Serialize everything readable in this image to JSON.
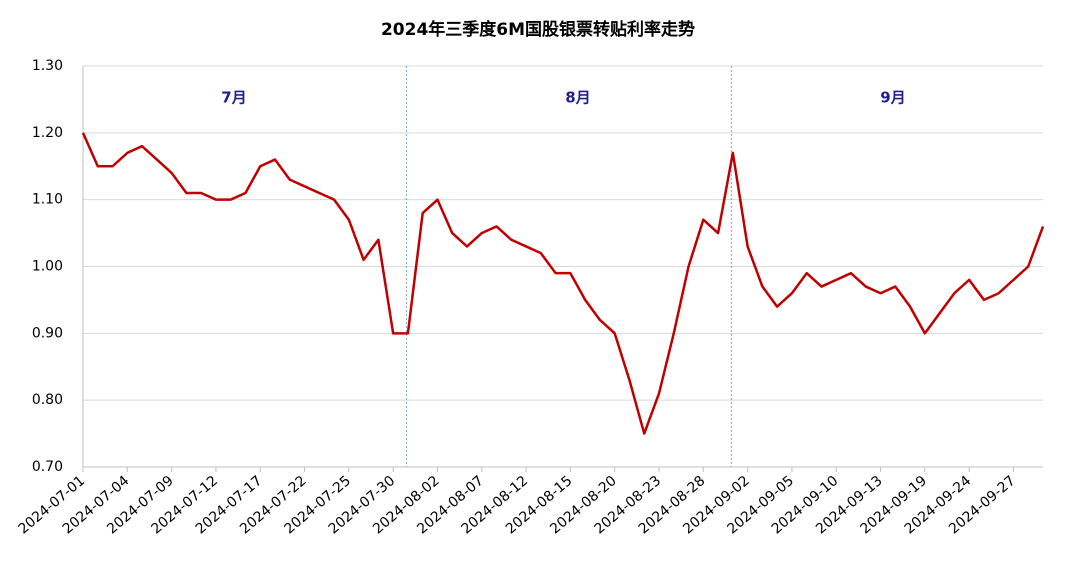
{
  "chart_data": {
    "type": "line",
    "title": "2024年三季度6M国股银票转贴利率走势",
    "categories": [
      "2024-07-01",
      null,
      null,
      "2024-07-04",
      null,
      null,
      "2024-07-09",
      null,
      null,
      "2024-07-12",
      null,
      null,
      "2024-07-17",
      null,
      null,
      "2024-07-22",
      null,
      null,
      "2024-07-25",
      null,
      null,
      "2024-07-30",
      null,
      null,
      "2024-08-02",
      null,
      null,
      "2024-08-07",
      null,
      null,
      "2024-08-12",
      null,
      null,
      "2024-08-15",
      null,
      null,
      "2024-08-20",
      null,
      null,
      "2024-08-23",
      null,
      null,
      "2024-08-28",
      null,
      null,
      "2024-09-02",
      null,
      null,
      "2024-09-05",
      null,
      null,
      "2024-09-10",
      null,
      null,
      "2024-09-13",
      null,
      null,
      "2024-09-19",
      null,
      null,
      "2024-09-24",
      null,
      null,
      "2024-09-27",
      null,
      null
    ],
    "series": [
      {
        "color": "#c00000",
        "values": [
          1.2,
          1.15,
          1.15,
          1.17,
          1.18,
          1.16,
          1.14,
          1.11,
          1.11,
          1.1,
          1.1,
          1.11,
          1.15,
          1.16,
          1.13,
          1.12,
          1.11,
          1.1,
          1.07,
          1.01,
          1.04,
          0.9,
          0.9,
          1.08,
          1.1,
          1.05,
          1.03,
          1.05,
          1.06,
          1.04,
          1.03,
          1.02,
          0.99,
          0.99,
          0.95,
          0.92,
          0.9,
          0.83,
          0.75,
          0.81,
          0.9,
          1.0,
          1.07,
          1.05,
          1.17,
          1.03,
          0.97,
          0.94,
          0.96,
          0.99,
          0.97,
          0.98,
          0.99,
          0.97,
          0.96,
          0.97,
          0.94,
          0.9,
          0.93,
          0.96,
          0.98,
          0.95,
          0.96,
          0.98,
          1.0,
          1.06
        ]
      }
    ],
    "ylim": [
      0.7,
      1.3
    ],
    "yticks": [
      {
        "value": 0.7,
        "label": "0.70"
      },
      {
        "value": 0.8,
        "label": "0.80"
      },
      {
        "value": 0.9,
        "label": "0.90"
      },
      {
        "value": 1.0,
        "label": "1.00"
      },
      {
        "value": 1.1,
        "label": "1.10"
      },
      {
        "value": 1.2,
        "label": "1.20"
      },
      {
        "value": 1.3,
        "label": "1.30"
      }
    ],
    "grid": true,
    "annotations": [
      "7月",
      "8月",
      "9月"
    ]
  }
}
